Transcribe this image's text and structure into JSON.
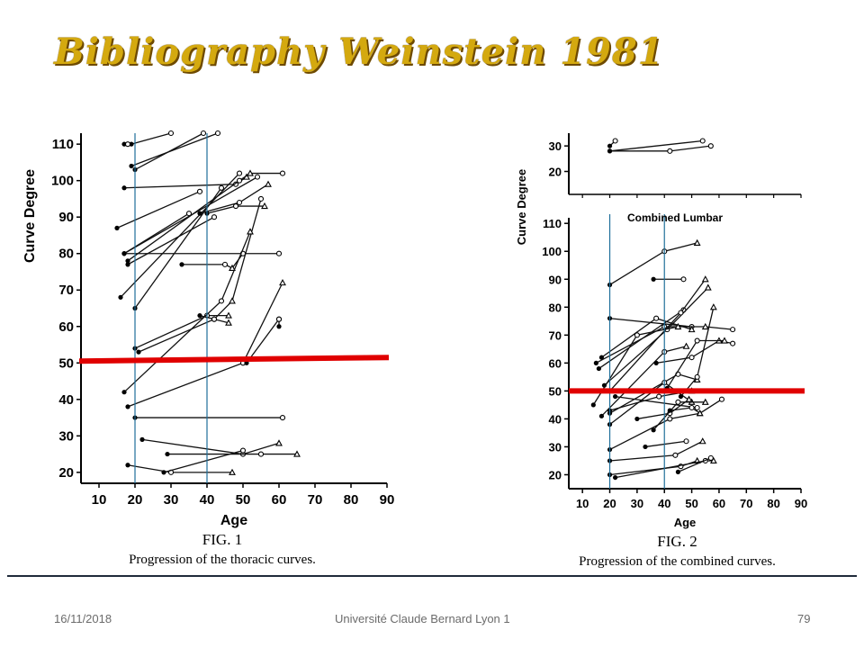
{
  "slide": {
    "title": "Bibliography Weinstein 1981",
    "footer": {
      "date": "16/11/2018",
      "institution": "Université Claude Bernard Lyon 1",
      "page": "79"
    }
  },
  "figures": {
    "fig1": {
      "fig_label": "FIG. 1",
      "caption": "Progression of the thoracic curves.",
      "xlabel": "Age",
      "ylabel": "Curve Degree"
    },
    "fig2": {
      "fig_label": "FIG. 2",
      "caption": "Progression of the combined curves.",
      "xlabel": "Age",
      "ylabel": "Curve Degree",
      "panel_label": "Combined Lumbar"
    }
  },
  "colors": {
    "threshold_line": "#e00000",
    "age_marker_line": "#1f6f9a",
    "title": "#d4a90f"
  },
  "chart_data": [
    {
      "type": "line",
      "title": "",
      "xlabel": "Age",
      "ylabel": "Curve Degree",
      "xlim": [
        5,
        90
      ],
      "ylim": [
        17,
        113
      ],
      "xticks": [
        10,
        20,
        30,
        40,
        50,
        60,
        70,
        80,
        90
      ],
      "yticks": [
        20,
        30,
        40,
        50,
        60,
        70,
        80,
        90,
        100,
        110
      ],
      "threshold_y": [
        50.5,
        51.5
      ],
      "age_markers": [
        20,
        40
      ],
      "series": [
        {
          "points": [
            [
              19,
              110
            ],
            [
              30,
              113
            ]
          ]
        },
        {
          "points": [
            [
              17,
              110
            ],
            [
              18,
              110
            ]
          ]
        },
        {
          "points": [
            [
              20,
              103
            ],
            [
              39,
              113
            ]
          ]
        },
        {
          "points": [
            [
              19,
              104
            ],
            [
              43,
              113
            ]
          ]
        },
        {
          "points": [
            [
              17,
              98
            ],
            [
              48,
              99
            ],
            [
              51,
              101
            ]
          ]
        },
        {
          "points": [
            [
              15,
              87
            ],
            [
              38,
              97
            ]
          ]
        },
        {
          "points": [
            [
              17,
              80
            ],
            [
              35,
              91
            ]
          ]
        },
        {
          "points": [
            [
              17,
              80
            ],
            [
              54,
              101
            ]
          ]
        },
        {
          "points": [
            [
              17,
              80
            ],
            [
              60,
              80
            ]
          ]
        },
        {
          "points": [
            [
              18,
              77
            ],
            [
              42,
              90
            ]
          ]
        },
        {
          "points": [
            [
              18,
              78
            ],
            [
              49,
              100
            ],
            [
              52,
              102
            ],
            [
              61,
              102
            ]
          ]
        },
        {
          "points": [
            [
              16,
              68
            ],
            [
              49,
              102
            ]
          ]
        },
        {
          "points": [
            [
              20,
              65
            ],
            [
              44,
              98
            ]
          ]
        },
        {
          "points": [
            [
              33,
              77
            ],
            [
              45,
              77
            ],
            [
              47,
              76
            ],
            [
              50,
              80
            ]
          ]
        },
        {
          "points": [
            [
              38,
              91
            ],
            [
              49,
              94
            ],
            [
              57,
              99
            ]
          ]
        },
        {
          "points": [
            [
              40,
              91
            ],
            [
              48,
              93
            ],
            [
              56,
              93
            ]
          ]
        },
        {
          "points": [
            [
              20,
              54
            ],
            [
              40,
              63
            ],
            [
              46,
              63
            ]
          ]
        },
        {
          "points": [
            [
              21,
              53
            ],
            [
              42,
              62
            ],
            [
              46,
              61
            ]
          ]
        },
        {
          "points": [
            [
              38,
              63
            ],
            [
              42,
              62
            ],
            [
              47,
              67
            ],
            [
              55,
              95
            ]
          ]
        },
        {
          "points": [
            [
              17,
              42
            ],
            [
              44,
              67
            ],
            [
              52,
              86
            ]
          ]
        },
        {
          "points": [
            [
              18,
              38
            ],
            [
              50,
              50
            ],
            [
              61,
              72
            ]
          ]
        },
        {
          "points": [
            [
              51,
              50
            ],
            [
              60,
              62
            ]
          ]
        },
        {
          "points": [
            [
              60,
              60
            ],
            [
              60,
              62
            ]
          ]
        },
        {
          "points": [
            [
              20,
              35
            ],
            [
              61,
              35
            ]
          ]
        },
        {
          "points": [
            [
              22,
              29
            ],
            [
              50,
              25
            ],
            [
              60,
              28
            ]
          ]
        },
        {
          "points": [
            [
              29,
              25
            ],
            [
              55,
              25
            ],
            [
              65,
              25
            ]
          ]
        },
        {
          "points": [
            [
              18,
              22
            ],
            [
              30,
              20
            ],
            [
              47,
              20
            ]
          ]
        },
        {
          "points": [
            [
              28,
              20
            ],
            [
              50,
              26
            ]
          ]
        }
      ]
    },
    {
      "type": "line",
      "title": "Combined Lumbar",
      "xlabel": "Age",
      "ylabel": "Curve Degree",
      "xlim": [
        5,
        90
      ],
      "ylim": [
        15,
        112
      ],
      "xticks": [
        10,
        20,
        30,
        40,
        50,
        60,
        70,
        80,
        90
      ],
      "yticks": [
        20,
        30,
        40,
        50,
        60,
        70,
        80,
        90,
        100,
        110
      ],
      "threshold_y": [
        50,
        50
      ],
      "age_markers": [
        20,
        40
      ],
      "upper_panel": {
        "yticks": [
          20,
          30
        ],
        "ylim": [
          11,
          35
        ],
        "series": [
          {
            "points": [
              [
                20,
                28
              ],
              [
                54,
                32
              ]
            ]
          },
          {
            "points": [
              [
                20,
                28
              ],
              [
                42,
                28
              ],
              [
                57,
                30
              ]
            ]
          },
          {
            "points": [
              [
                20,
                30
              ],
              [
                22,
                32
              ]
            ]
          }
        ]
      },
      "series": [
        {
          "points": [
            [
              20,
              88
            ],
            [
              40,
              100
            ],
            [
              52,
              103
            ]
          ]
        },
        {
          "points": [
            [
              36,
              90
            ],
            [
              47,
              90
            ]
          ]
        },
        {
          "points": [
            [
              20,
              76
            ],
            [
              50,
              73
            ]
          ]
        },
        {
          "points": [
            [
              17,
              62
            ],
            [
              37,
              76
            ],
            [
              50,
              72
            ]
          ]
        },
        {
          "points": [
            [
              15,
              60
            ],
            [
              40,
              73
            ],
            [
              55,
              73
            ],
            [
              65,
              72
            ]
          ]
        },
        {
          "points": [
            [
              16,
              58
            ],
            [
              47,
              79
            ]
          ]
        },
        {
          "points": [
            [
              18,
              52
            ],
            [
              41,
              72
            ],
            [
              56,
              87
            ]
          ]
        },
        {
          "points": [
            [
              20,
              50
            ],
            [
              46,
              78
            ],
            [
              55,
              90
            ]
          ]
        },
        {
          "points": [
            [
              14,
              45
            ],
            [
              30,
              70
            ],
            [
              45,
              73
            ]
          ]
        },
        {
          "points": [
            [
              17,
              41
            ],
            [
              40,
              64
            ],
            [
              48,
              66
            ]
          ]
        },
        {
          "points": [
            [
              20,
              42
            ],
            [
              45,
              56
            ],
            [
              52,
              54
            ]
          ]
        },
        {
          "points": [
            [
              20,
              38
            ],
            [
              40,
              53
            ],
            [
              50,
              46
            ]
          ]
        },
        {
          "points": [
            [
              22,
              48
            ],
            [
              52,
              44
            ]
          ]
        },
        {
          "points": [
            [
              20,
              43
            ],
            [
              38,
              48
            ],
            [
              50,
              50
            ]
          ]
        },
        {
          "points": [
            [
              30,
              40
            ],
            [
              42,
              42
            ],
            [
              49,
              47
            ]
          ]
        },
        {
          "points": [
            [
              36,
              36
            ],
            [
              45,
              46
            ],
            [
              55,
              46
            ]
          ]
        },
        {
          "points": [
            [
              42,
              43
            ],
            [
              50,
              44
            ],
            [
              53,
              42
            ]
          ]
        },
        {
          "points": [
            [
              33,
              30
            ],
            [
              48,
              32
            ]
          ]
        },
        {
          "points": [
            [
              20,
              29
            ],
            [
              42,
              40
            ],
            [
              53,
              42
            ],
            [
              61,
              47
            ]
          ]
        },
        {
          "points": [
            [
              20,
              25
            ],
            [
              44,
              27
            ],
            [
              54,
              32
            ]
          ]
        },
        {
          "points": [
            [
              20,
              20
            ],
            [
              46,
              23
            ],
            [
              52,
              25
            ]
          ]
        },
        {
          "points": [
            [
              22,
              19
            ],
            [
              55,
              25
            ],
            [
              58,
              25
            ]
          ]
        },
        {
          "points": [
            [
              45,
              21
            ],
            [
              57,
              26
            ]
          ]
        },
        {
          "points": [
            [
              37,
              60
            ],
            [
              50,
              62
            ],
            [
              60,
              68
            ],
            [
              65,
              67
            ]
          ]
        },
        {
          "points": [
            [
              41,
              51
            ],
            [
              52,
              68
            ],
            [
              62,
              68
            ]
          ]
        },
        {
          "points": [
            [
              46,
              48
            ],
            [
              52,
              55
            ],
            [
              58,
              80
            ]
          ]
        }
      ]
    }
  ]
}
